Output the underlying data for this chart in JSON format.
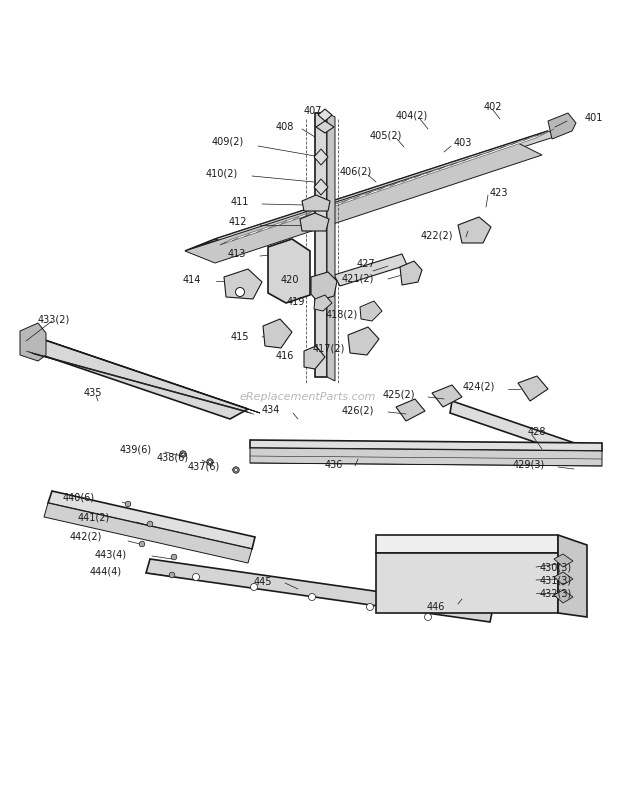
{
  "bg_color": "#ffffff",
  "line_color": "#1a1a1a",
  "label_color": "#1a1a1a",
  "watermark": "eReplacementParts.com",
  "figsize": [
    6.2,
    8.04
  ],
  "dpi": 100
}
